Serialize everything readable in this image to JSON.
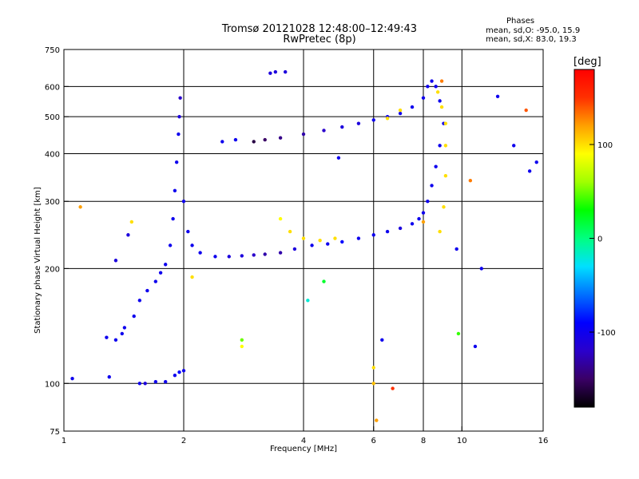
{
  "header": {
    "title_line1": "Tromsø 20121028 12:48:00–12:49:43",
    "title_line2": "RwPretec (8p)"
  },
  "stats": {
    "heading": "Phases",
    "line_o": "mean, sd,O: -95.0, 15.9",
    "line_x": "mean, sd,X:  83.0, 19.3"
  },
  "colorbar": {
    "unit": "[deg]",
    "ticks": [
      {
        "value": 100,
        "label": "100"
      },
      {
        "value": 0,
        "label": "0"
      },
      {
        "value": -100,
        "label": "-100"
      }
    ],
    "range": [
      -180,
      180
    ],
    "colors": [
      "#000000",
      "#3a0066",
      "#2a00cc",
      "#0000ff",
      "#0070ff",
      "#00e0ff",
      "#00ff80",
      "#00ff00",
      "#a0ff00",
      "#ffff00",
      "#ffa000",
      "#ff3000",
      "#ff0000"
    ]
  },
  "chart_data": {
    "type": "scatter",
    "title": "Tromsø 20121028 12:48:00–12:49:43",
    "subtitle": "RwPretec (8p)",
    "xlabel": "Frequency [MHz]",
    "ylabel": "Stationary phase Virtual Height [km]",
    "x_scale": "log",
    "y_scale": "log",
    "xlim": [
      1,
      16
    ],
    "ylim": [
      75,
      750
    ],
    "x_ticks": [
      {
        "value": 1,
        "label": "1"
      },
      {
        "value": 2,
        "label": "2"
      },
      {
        "value": 4,
        "label": "4"
      },
      {
        "value": 6,
        "label": "6"
      },
      {
        "value": 8,
        "label": "8"
      },
      {
        "value": 10,
        "label": "10"
      },
      {
        "value": 16,
        "label": "16"
      }
    ],
    "y_ticks": [
      {
        "value": 75,
        "label": "75"
      },
      {
        "value": 100,
        "label": "100"
      },
      {
        "value": 200,
        "label": "200"
      },
      {
        "value": 300,
        "label": "300"
      },
      {
        "value": 400,
        "label": "400"
      },
      {
        "value": 500,
        "label": "500"
      },
      {
        "value": 600,
        "label": "600"
      },
      {
        "value": 750,
        "label": "750"
      }
    ],
    "grid_x": [
      2,
      4,
      6,
      8,
      10
    ],
    "grid_y": [
      100,
      200,
      300,
      400,
      500,
      600
    ],
    "grid": true,
    "color_key": "phase",
    "points": [
      {
        "x": 1.05,
        "y": 103,
        "phase": -100
      },
      {
        "x": 1.3,
        "y": 104,
        "phase": -100
      },
      {
        "x": 1.28,
        "y": 132,
        "phase": -100
      },
      {
        "x": 1.35,
        "y": 130,
        "phase": -100
      },
      {
        "x": 1.4,
        "y": 135,
        "phase": -100
      },
      {
        "x": 1.42,
        "y": 140,
        "phase": -100
      },
      {
        "x": 1.35,
        "y": 210,
        "phase": -110
      },
      {
        "x": 1.45,
        "y": 245,
        "phase": -110
      },
      {
        "x": 1.48,
        "y": 265,
        "phase": 100
      },
      {
        "x": 1.1,
        "y": 290,
        "phase": 120
      },
      {
        "x": 1.55,
        "y": 100,
        "phase": -100
      },
      {
        "x": 1.6,
        "y": 100,
        "phase": -110
      },
      {
        "x": 1.7,
        "y": 101,
        "phase": -100
      },
      {
        "x": 1.8,
        "y": 101,
        "phase": -100
      },
      {
        "x": 1.9,
        "y": 105,
        "phase": -100
      },
      {
        "x": 1.95,
        "y": 107,
        "phase": -90
      },
      {
        "x": 2.0,
        "y": 108,
        "phase": -100
      },
      {
        "x": 1.5,
        "y": 150,
        "phase": -100
      },
      {
        "x": 1.55,
        "y": 165,
        "phase": -100
      },
      {
        "x": 1.62,
        "y": 175,
        "phase": -100
      },
      {
        "x": 1.7,
        "y": 185,
        "phase": -100
      },
      {
        "x": 1.75,
        "y": 195,
        "phase": -100
      },
      {
        "x": 1.8,
        "y": 205,
        "phase": -100
      },
      {
        "x": 1.85,
        "y": 230,
        "phase": -100
      },
      {
        "x": 1.88,
        "y": 270,
        "phase": -100
      },
      {
        "x": 1.9,
        "y": 320,
        "phase": -100
      },
      {
        "x": 1.92,
        "y": 380,
        "phase": -100
      },
      {
        "x": 1.94,
        "y": 450,
        "phase": -100
      },
      {
        "x": 1.95,
        "y": 500,
        "phase": -110
      },
      {
        "x": 1.96,
        "y": 560,
        "phase": -120
      },
      {
        "x": 2.0,
        "y": 300,
        "phase": -100
      },
      {
        "x": 2.05,
        "y": 250,
        "phase": -100
      },
      {
        "x": 2.1,
        "y": 230,
        "phase": -100
      },
      {
        "x": 2.2,
        "y": 220,
        "phase": -100
      },
      {
        "x": 2.4,
        "y": 215,
        "phase": -100
      },
      {
        "x": 2.6,
        "y": 215,
        "phase": -110
      },
      {
        "x": 2.8,
        "y": 216,
        "phase": -110
      },
      {
        "x": 3.0,
        "y": 217,
        "phase": -120
      },
      {
        "x": 3.2,
        "y": 218,
        "phase": -130
      },
      {
        "x": 3.5,
        "y": 220,
        "phase": -130
      },
      {
        "x": 3.8,
        "y": 225,
        "phase": -110
      },
      {
        "x": 4.2,
        "y": 230,
        "phase": -100
      },
      {
        "x": 4.6,
        "y": 232,
        "phase": -100
      },
      {
        "x": 5.0,
        "y": 235,
        "phase": -90
      },
      {
        "x": 5.5,
        "y": 240,
        "phase": -100
      },
      {
        "x": 6.0,
        "y": 245,
        "phase": -100
      },
      {
        "x": 6.5,
        "y": 250,
        "phase": -100
      },
      {
        "x": 7.0,
        "y": 255,
        "phase": -110
      },
      {
        "x": 7.5,
        "y": 262,
        "phase": -100
      },
      {
        "x": 7.8,
        "y": 270,
        "phase": -100
      },
      {
        "x": 8.0,
        "y": 280,
        "phase": -100
      },
      {
        "x": 8.2,
        "y": 300,
        "phase": -100
      },
      {
        "x": 8.4,
        "y": 330,
        "phase": -100
      },
      {
        "x": 8.6,
        "y": 370,
        "phase": -100
      },
      {
        "x": 8.8,
        "y": 420,
        "phase": -100
      },
      {
        "x": 9.0,
        "y": 480,
        "phase": -100
      },
      {
        "x": 8.8,
        "y": 550,
        "phase": -100
      },
      {
        "x": 8.6,
        "y": 600,
        "phase": -100
      },
      {
        "x": 8.4,
        "y": 620,
        "phase": -100
      },
      {
        "x": 8.2,
        "y": 600,
        "phase": -100
      },
      {
        "x": 8.0,
        "y": 560,
        "phase": -100
      },
      {
        "x": 7.5,
        "y": 530,
        "phase": -100
      },
      {
        "x": 7.0,
        "y": 510,
        "phase": -100
      },
      {
        "x": 6.5,
        "y": 500,
        "phase": -100
      },
      {
        "x": 6.0,
        "y": 490,
        "phase": -100
      },
      {
        "x": 5.5,
        "y": 480,
        "phase": -110
      },
      {
        "x": 5.0,
        "y": 470,
        "phase": -110
      },
      {
        "x": 4.5,
        "y": 460,
        "phase": -120
      },
      {
        "x": 4.0,
        "y": 450,
        "phase": -130
      },
      {
        "x": 3.5,
        "y": 440,
        "phase": -140
      },
      {
        "x": 3.2,
        "y": 435,
        "phase": -150
      },
      {
        "x": 3.0,
        "y": 430,
        "phase": -160
      },
      {
        "x": 3.3,
        "y": 650,
        "phase": -110
      },
      {
        "x": 3.4,
        "y": 655,
        "phase": -110
      },
      {
        "x": 3.6,
        "y": 655,
        "phase": -110
      },
      {
        "x": 2.5,
        "y": 430,
        "phase": -100
      },
      {
        "x": 2.7,
        "y": 435,
        "phase": -100
      },
      {
        "x": 3.5,
        "y": 270,
        "phase": 90
      },
      {
        "x": 3.7,
        "y": 250,
        "phase": 100
      },
      {
        "x": 4.0,
        "y": 240,
        "phase": 100
      },
      {
        "x": 4.4,
        "y": 237,
        "phase": 100
      },
      {
        "x": 4.8,
        "y": 240,
        "phase": 100
      },
      {
        "x": 8.8,
        "y": 250,
        "phase": 100
      },
      {
        "x": 9.0,
        "y": 290,
        "phase": 100
      },
      {
        "x": 9.1,
        "y": 350,
        "phase": 100
      },
      {
        "x": 9.1,
        "y": 420,
        "phase": 100
      },
      {
        "x": 9.1,
        "y": 480,
        "phase": 100
      },
      {
        "x": 8.9,
        "y": 530,
        "phase": 100
      },
      {
        "x": 8.7,
        "y": 580,
        "phase": 100
      },
      {
        "x": 8.9,
        "y": 620,
        "phase": 130
      },
      {
        "x": 7.0,
        "y": 520,
        "phase": 100
      },
      {
        "x": 6.5,
        "y": 495,
        "phase": 100
      },
      {
        "x": 8.0,
        "y": 265,
        "phase": 120
      },
      {
        "x": 6.0,
        "y": 110,
        "phase": 100
      },
      {
        "x": 6.0,
        "y": 100,
        "phase": 110
      },
      {
        "x": 6.1,
        "y": 80,
        "phase": 120
      },
      {
        "x": 6.7,
        "y": 97,
        "phase": 150
      },
      {
        "x": 2.1,
        "y": 190,
        "phase": 100
      },
      {
        "x": 2.8,
        "y": 125,
        "phase": 90
      },
      {
        "x": 2.8,
        "y": 130,
        "phase": 50
      },
      {
        "x": 4.1,
        "y": 165,
        "phase": -20
      },
      {
        "x": 4.5,
        "y": 185,
        "phase": 20
      },
      {
        "x": 6.3,
        "y": 130,
        "phase": -100
      },
      {
        "x": 9.8,
        "y": 135,
        "phase": 40
      },
      {
        "x": 10.8,
        "y": 125,
        "phase": -100
      },
      {
        "x": 11.2,
        "y": 200,
        "phase": -100
      },
      {
        "x": 12.3,
        "y": 565,
        "phase": -100
      },
      {
        "x": 14.5,
        "y": 520,
        "phase": 140
      },
      {
        "x": 14.8,
        "y": 360,
        "phase": -100
      },
      {
        "x": 15.4,
        "y": 380,
        "phase": -100
      },
      {
        "x": 10.5,
        "y": 340,
        "phase": 130
      },
      {
        "x": 13.5,
        "y": 420,
        "phase": -100
      },
      {
        "x": 9.7,
        "y": 225,
        "phase": -100
      },
      {
        "x": 4.9,
        "y": 390,
        "phase": -100
      }
    ]
  },
  "labels": {
    "xlabel": "Frequency [MHz]",
    "ylabel": "Stationary phase Virtual Height [km]"
  }
}
